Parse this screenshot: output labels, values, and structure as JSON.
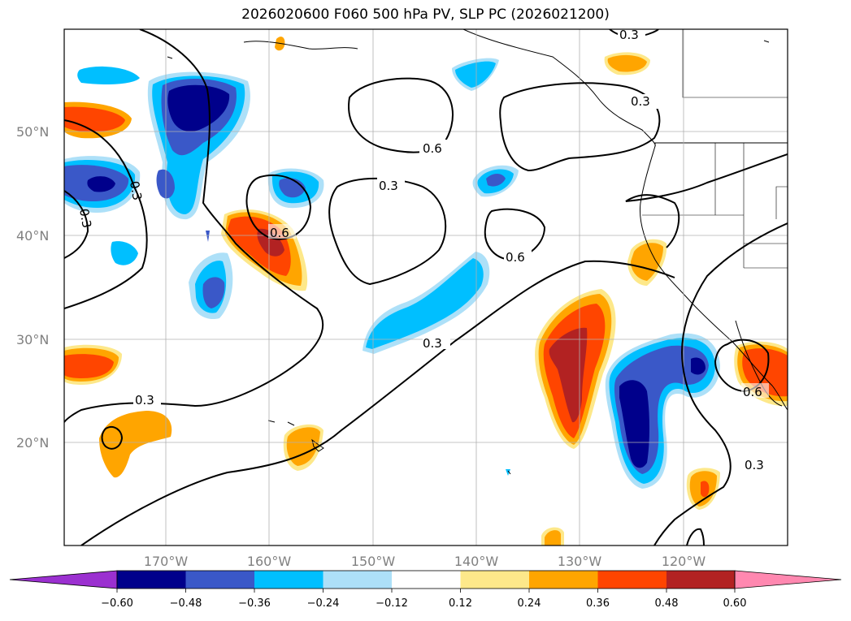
{
  "title": "2026020600 F060 500 hPa PV, SLP PC (2026021200)",
  "colors": {
    "neg_extend": "#9b30d0",
    "neg_060": "#00008b",
    "neg_048": "#3a58c8",
    "neg_036": "#00bfff",
    "neg_024": "#ade0f8",
    "neutral": "#ffffff",
    "pos_012": "#fde88a",
    "pos_024": "#ffa500",
    "pos_036": "#ff4500",
    "pos_048": "#b22222",
    "pos_extend": "#ff88b0"
  },
  "lat_labels": [
    "50°N",
    "40°N",
    "30°N",
    "20°N"
  ],
  "lon_labels": [
    "170°W",
    "160°W",
    "150°W",
    "140°W",
    "130°W",
    "120°W"
  ],
  "colorbar_labels": [
    "−0.60",
    "−0.48",
    "−0.36",
    "−0.24",
    "−0.12",
    "0.12",
    "0.24",
    "0.36",
    "0.48",
    "0.60"
  ],
  "contour_labels": [
    "0.3",
    "0.3",
    "0.3",
    "0.6",
    "0.3",
    "0.6",
    "0.6",
    "0.3",
    "0.3",
    "0.3",
    "0.6",
    "0.3"
  ]
}
